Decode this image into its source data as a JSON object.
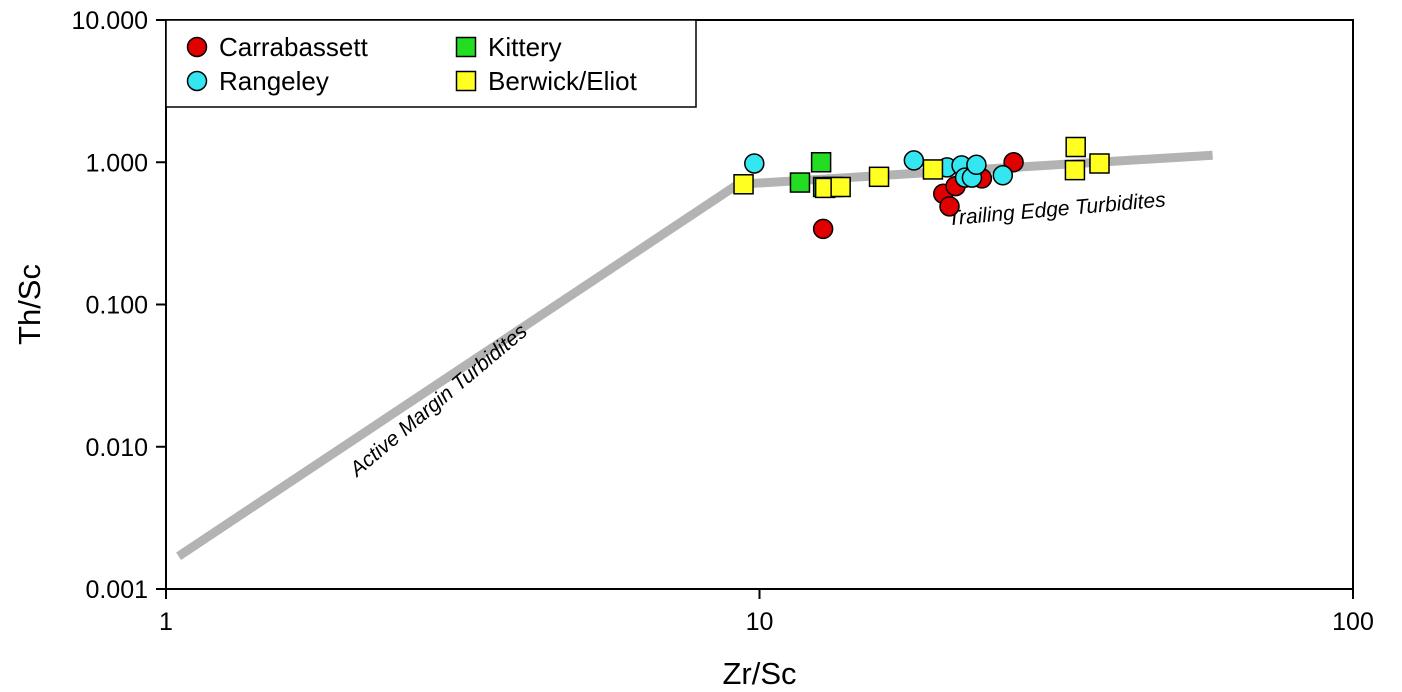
{
  "chart_data": {
    "type": "scatter",
    "xscale": "log",
    "yscale": "log",
    "xlim": [
      1,
      100
    ],
    "ylim": [
      0.001,
      10
    ],
    "xlabel": "Zr/Sc",
    "ylabel": "Th/Sc",
    "xticks": [
      {
        "value": 1,
        "label": "1"
      },
      {
        "value": 10,
        "label": "10"
      },
      {
        "value": 100,
        "label": "100"
      }
    ],
    "yticks": [
      {
        "value": 0.001,
        "label": "0.001"
      },
      {
        "value": 0.01,
        "label": "0.010"
      },
      {
        "value": 0.1,
        "label": "0.100"
      },
      {
        "value": 1,
        "label": "1.000"
      },
      {
        "value": 10,
        "label": "10.000"
      }
    ],
    "grid": false,
    "legend_position": "top-left",
    "series": [
      {
        "name": "Carrabassett",
        "marker": "circle",
        "color": "#e00000",
        "points": [
          {
            "x": 12.8,
            "y": 0.34
          },
          {
            "x": 20.4,
            "y": 0.6
          },
          {
            "x": 20.9,
            "y": 0.49
          },
          {
            "x": 21.4,
            "y": 0.68
          },
          {
            "x": 23.7,
            "y": 0.77
          },
          {
            "x": 26.8,
            "y": 1.0
          }
        ]
      },
      {
        "name": "Rangeley",
        "marker": "circle",
        "color": "#33e6ef",
        "points": [
          {
            "x": 9.8,
            "y": 0.98
          },
          {
            "x": 18.2,
            "y": 1.03
          },
          {
            "x": 20.7,
            "y": 0.92
          },
          {
            "x": 21.9,
            "y": 0.95
          },
          {
            "x": 22.2,
            "y": 0.78
          },
          {
            "x": 22.8,
            "y": 0.78
          },
          {
            "x": 23.2,
            "y": 0.96
          },
          {
            "x": 25.7,
            "y": 0.81
          }
        ]
      },
      {
        "name": "Kittery",
        "marker": "square",
        "color": "#22dd22",
        "points": [
          {
            "x": 11.7,
            "y": 0.72
          },
          {
            "x": 12.7,
            "y": 1.0
          },
          {
            "x": 12.8,
            "y": 0.67
          },
          {
            "x": 13.3,
            "y": 0.67
          }
        ]
      },
      {
        "name": "Berwick/Eliot",
        "marker": "square",
        "color": "#ffff22",
        "points": [
          {
            "x": 9.4,
            "y": 0.7
          },
          {
            "x": 12.9,
            "y": 0.66
          },
          {
            "x": 13.7,
            "y": 0.67
          },
          {
            "x": 15.9,
            "y": 0.79
          },
          {
            "x": 19.6,
            "y": 0.89
          },
          {
            "x": 34.1,
            "y": 1.28
          },
          {
            "x": 34.0,
            "y": 0.88
          },
          {
            "x": 37.4,
            "y": 0.98
          }
        ]
      }
    ],
    "reference_line": {
      "color": "#b3b3b3",
      "points": [
        {
          "x": 1.05,
          "y": 0.0017
        },
        {
          "x": 9.2,
          "y": 0.7
        },
        {
          "x": 58,
          "y": 1.12
        }
      ]
    },
    "annotations": [
      {
        "text": "Active Margin Turbidites",
        "x": 2.1,
        "y": 0.0061,
        "angle": -40
      },
      {
        "text": "Trailing Edge Turbidites",
        "x": 20.8,
        "y": 0.36,
        "angle": -5
      }
    ]
  }
}
